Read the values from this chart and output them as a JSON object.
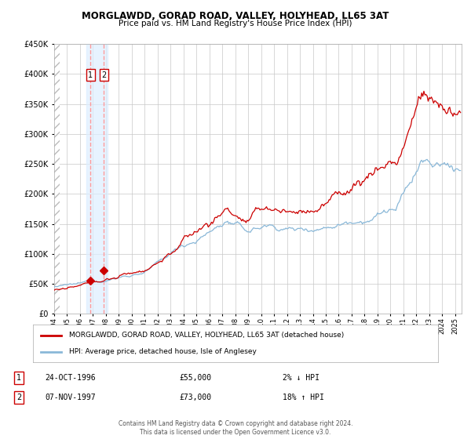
{
  "title": "MORGLAWDD, GORAD ROAD, VALLEY, HOLYHEAD, LL65 3AT",
  "subtitle": "Price paid vs. HM Land Registry's House Price Index (HPI)",
  "red_label": "MORGLAWDD, GORAD ROAD, VALLEY, HOLYHEAD, LL65 3AT (detached house)",
  "blue_label": "HPI: Average price, detached house, Isle of Anglesey",
  "transaction1_date": "24-OCT-1996",
  "transaction1_price": "£55,000",
  "transaction1_info": "2% ↓ HPI",
  "transaction2_date": "07-NOV-1997",
  "transaction2_price": "£73,000",
  "transaction2_info": "18% ↑ HPI",
  "footer": "Contains HM Land Registry data © Crown copyright and database right 2024.\nThis data is licensed under the Open Government Licence v3.0.",
  "sale1_date_num": 1996.82,
  "sale1_price": 55000,
  "sale2_date_num": 1997.85,
  "sale2_price": 73000,
  "xmin": 1994.0,
  "xmax": 2025.5,
  "ymin": 0,
  "ymax": 450000,
  "background_color": "#ffffff",
  "grid_color": "#c8c8c8",
  "red_color": "#cc0000",
  "blue_color": "#8ab8d8",
  "vline_color": "#ff9999",
  "vband_color": "#ddeeff",
  "sale_marker_color": "#cc0000"
}
